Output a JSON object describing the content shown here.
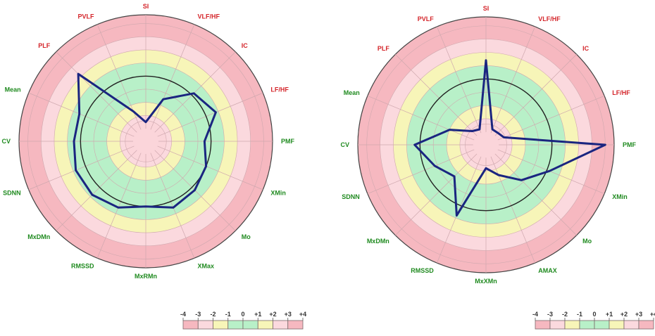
{
  "colors": {
    "red_label": "#d4252a",
    "green_label": "#1f8a1f",
    "ring_dark_pink": "#f6b8c0",
    "ring_light_pink": "#fbd9de",
    "ring_yellow": "#f7f5b8",
    "ring_green": "#b8f0c8",
    "center_pink": "#fbd5da",
    "polygon": "#1a2580",
    "grid_line": "#cfa8ae",
    "normal_circle": "#222222"
  },
  "chart_data": [
    {
      "type": "radar",
      "title": "",
      "scale": [
        -4,
        4
      ],
      "axes": [
        {
          "label": "SI",
          "group": "red"
        },
        {
          "label": "VLF/HF",
          "group": "red"
        },
        {
          "label": "IC",
          "group": "red"
        },
        {
          "label": "LF/HF",
          "group": "red"
        },
        {
          "label": "PMF",
          "group": "green"
        },
        {
          "label": "XMin",
          "group": "green"
        },
        {
          "label": "Mo",
          "group": "green"
        },
        {
          "label": "XMax",
          "group": "green"
        },
        {
          "label": "MxRMn",
          "group": "green"
        },
        {
          "label": "RMSSD",
          "group": "green"
        },
        {
          "label": "MxDMn",
          "group": "green"
        },
        {
          "label": "SDNN",
          "group": "green"
        },
        {
          "label": "CV",
          "group": "green"
        },
        {
          "label": "Mean",
          "group": "green"
        },
        {
          "label": "PLF",
          "group": "red"
        },
        {
          "label": "PVLF",
          "group": "red"
        }
      ],
      "series": [
        {
          "values": [
            -3.5,
            -1.5,
            0.2,
            0.8,
            -0.5,
            0.0,
            0.3,
            0.5,
            0.0,
            0.5,
            0.8,
            0.8,
            0.5,
            0.5,
            2.3,
            -2.5
          ]
        }
      ],
      "legend": {
        "ticks": [
          "-4",
          "-3",
          "-2",
          "-1",
          "0",
          "+1",
          "+2",
          "+3",
          "+4"
        ]
      }
    },
    {
      "type": "radar",
      "title": "",
      "scale": [
        -4,
        4
      ],
      "axes": [
        {
          "label": "SI",
          "group": "red"
        },
        {
          "label": "VLF/HF",
          "group": "red"
        },
        {
          "label": "IC",
          "group": "red"
        },
        {
          "label": "LF/HF",
          "group": "red"
        },
        {
          "label": "PMF",
          "group": "green"
        },
        {
          "label": "XMin",
          "group": "green"
        },
        {
          "label": "Mo",
          "group": "green"
        },
        {
          "label": "AMAX",
          "group": "green"
        },
        {
          "label": "MxXMn",
          "group": "green"
        },
        {
          "label": "RMSSD",
          "group": "green"
        },
        {
          "label": "MxDMn",
          "group": "green"
        },
        {
          "label": "SDNN",
          "group": "green"
        },
        {
          "label": "CV",
          "group": "green"
        },
        {
          "label": "Mean",
          "group": "green"
        },
        {
          "label": "PLF",
          "group": "red"
        },
        {
          "label": "PVLF",
          "group": "red"
        }
      ],
      "series": [
        {
          "values": [
            1.4,
            -3.7,
            -3.7,
            -3.5,
            4.0,
            0.2,
            -1.2,
            -2.5,
            -3.2,
            0.8,
            -1.6,
            -0.8,
            0.4,
            -2.0,
            -3.5,
            -3.7
          ]
        }
      ],
      "legend": {
        "ticks": [
          "-4",
          "-3",
          "-2",
          "-1",
          "0",
          "+1",
          "+2",
          "+3",
          "+4"
        ]
      }
    }
  ]
}
